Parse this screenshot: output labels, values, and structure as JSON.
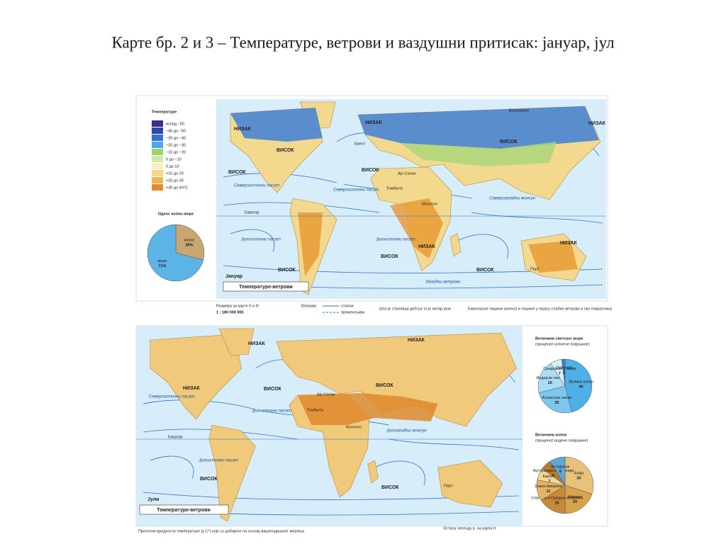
{
  "title": "Карте бр. 2 и 3 – Температуре, ветрови и ваздушни притисак: јануар, јул",
  "temperature_legend": {
    "title": "Температуре",
    "items": [
      {
        "label": "испод −50",
        "color": "#3a2c8a"
      },
      {
        "label": "−40 до −50",
        "color": "#2b46b5"
      },
      {
        "label": "−30 до −40",
        "color": "#2f73d6"
      },
      {
        "label": "−20 до −30",
        "color": "#4fa6ea"
      },
      {
        "label": "−10 до −20",
        "color": "#9fd36b"
      },
      {
        "label": "0 до −10",
        "color": "#cfe9a8"
      },
      {
        "label": "0 до 10",
        "color": "#f6f0bf"
      },
      {
        "label": "+10 до 20",
        "color": "#f5d98a"
      },
      {
        "label": "+20 до 30",
        "color": "#efb35a"
      },
      {
        "label": "+30 до 40°C",
        "color": "#e8892c"
      }
    ]
  },
  "land_sea": {
    "title": "Однос копно-море",
    "slices": [
      {
        "name": "копно",
        "value": 29,
        "value_label": "29%",
        "color": "#c9a771"
      },
      {
        "name": "море",
        "value": 71,
        "value_label": "71%",
        "color": "#5bb3e6"
      }
    ]
  },
  "january_map": {
    "panel": "Јануар",
    "caption": "Температуре-ветрови",
    "labels": [
      "НИЗАК",
      "ВИСОК",
      "ВИСОК",
      "ВИСОК",
      "НИЗАК",
      "НИЗАК",
      "ВИСОК",
      "НИЗАК",
      "ВИСОК",
      "ВИСОК",
      "ВИСОК",
      "НИЗАК",
      "Верхојанск",
      "Брест",
      "Ајн Салах",
      "Томбукту",
      "Монголо",
      "Перт",
      "Екватор"
    ],
    "winds": [
      "Североисточни пасат",
      "Североисточни пасат",
      "Југоисточни пасат",
      "Југоисточни пасат",
      "Северозападни монсун",
      "Западни ветрови"
    ]
  },
  "legend_footer": {
    "scale_title": "Размера за карте II и III",
    "scale": "1 : 180 000 000",
    "winds": "Ветрови",
    "constant": "стални",
    "variable": "променљиви",
    "note": "Што је стрелица дебља то је ветар јачи",
    "calms": "Екваторске тишине (копно) и тишине у појасу слабих ветрова и око повратника"
  },
  "july_map": {
    "panel": "Јули",
    "caption": "Температуре-ветрови",
    "labels": [
      "НИЗАК",
      "НИЗАК",
      "ВИСОК",
      "ВИСОК",
      "ВИСОК",
      "НИЗАК",
      "ВИСОК",
      "Ајн Салах",
      "Томбукту",
      "Монголо",
      "Перт",
      "Екватор"
    ],
    "winds": [
      "Североисточни пасат",
      "Југоисточни пасат",
      "Југоисточни пасат",
      "Југозападни монсун"
    ]
  },
  "oceans": {
    "title": "Величина светског мора",
    "subtitle": "(проценат копнене површине)",
    "slices": [
      {
        "name": "Велики океан",
        "value": 46,
        "color": "#4fb0e8"
      },
      {
        "name": "Атлантски океан",
        "value": 25,
        "color": "#7cc6ef"
      },
      {
        "name": "Индијски океан",
        "value": 20,
        "color": "#a9dcf5"
      },
      {
        "name": "Средоземна мора",
        "value": 7,
        "color": "#d5eefa"
      },
      {
        "name": "Океанија",
        "value": 2,
        "color": "#2b86cf"
      }
    ]
  },
  "continents": {
    "title": "Величина копна",
    "subtitle": "(проценат водене површине)",
    "slices": [
      {
        "name": "Азија",
        "value": 30,
        "color": "#e9c27a"
      },
      {
        "name": "Африка",
        "value": 20,
        "color": "#d9a24c"
      },
      {
        "name": "Северна и Средња Америка",
        "value": 16,
        "color": "#c88a3a"
      },
      {
        "name": "Јужна Америка",
        "value": 12,
        "color": "#e4b363"
      },
      {
        "name": "Европа",
        "value": 7,
        "color": "#f1d79a"
      },
      {
        "name": "Аустралија и Океанија",
        "value": 6,
        "color": "#b7792f"
      },
      {
        "name": "Антарктик",
        "value": 9,
        "color": "#5fa7d8"
      }
    ]
  },
  "bottom_notes": {
    "left": "Просечне вредности температуре (у C°) које су добијене на основу вишегодишњег мерења",
    "right": "Осталу легенду в. на карти II"
  }
}
